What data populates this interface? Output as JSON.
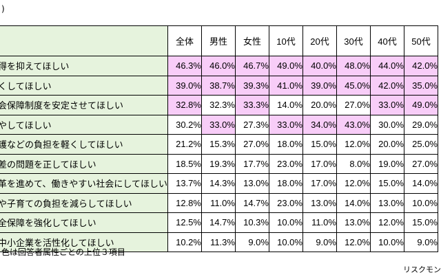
{
  "top_note": ")",
  "columns": [
    "全体",
    "男性",
    "女性",
    "10代",
    "20代",
    "30代",
    "40代",
    "50代"
  ],
  "rows": [
    {
      "label": "得を抑えてほしい",
      "values": [
        "46.3%",
        "46.0%",
        "46.7%",
        "49.0%",
        "40.0%",
        "48.0%",
        "44.0%",
        "42.0%"
      ],
      "highlight": [
        true,
        true,
        true,
        true,
        true,
        true,
        true,
        true
      ]
    },
    {
      "label": "くしてほしい",
      "values": [
        "39.0%",
        "38.7%",
        "39.3%",
        "41.0%",
        "39.0%",
        "45.0%",
        "42.0%",
        "35.0%"
      ],
      "highlight": [
        true,
        true,
        true,
        true,
        true,
        true,
        true,
        true
      ]
    },
    {
      "label": "会保障制度を安定させてほしい",
      "values": [
        "32.8%",
        "32.3%",
        "33.3%",
        "14.0%",
        "20.0%",
        "27.0%",
        "33.0%",
        "49.0%"
      ],
      "highlight": [
        true,
        false,
        true,
        false,
        false,
        false,
        true,
        true
      ]
    },
    {
      "label": "やしてほしい",
      "values": [
        "30.2%",
        "33.0%",
        "27.3%",
        "33.0%",
        "34.0%",
        "43.0%",
        "30.0%",
        "29.0%"
      ],
      "highlight": [
        false,
        true,
        false,
        true,
        true,
        true,
        false,
        false
      ]
    },
    {
      "label": "護などの負担を軽くしてほしい",
      "values": [
        "21.2%",
        "15.3%",
        "27.0%",
        "18.0%",
        "15.0%",
        "12.0%",
        "20.0%",
        "25.0%"
      ],
      "highlight": [
        false,
        false,
        false,
        false,
        false,
        false,
        false,
        false
      ]
    },
    {
      "label": "差の問題を正してほしい",
      "values": [
        "18.5%",
        "19.3%",
        "17.7%",
        "23.0%",
        "17.0%",
        "8.0%",
        "19.0%",
        "27.0%"
      ],
      "highlight": [
        false,
        false,
        false,
        false,
        false,
        false,
        false,
        false
      ]
    },
    {
      "label": "革を進めて、働きやすい社会にしてほしい",
      "values": [
        "13.7%",
        "14.3%",
        "13.0%",
        "18.0%",
        "17.0%",
        "12.0%",
        "15.0%",
        "14.0%"
      ],
      "highlight": [
        false,
        false,
        false,
        false,
        false,
        false,
        false,
        false
      ]
    },
    {
      "label": "や子育ての負担を減らしてほしい",
      "values": [
        "12.8%",
        "11.0%",
        "14.7%",
        "23.0%",
        "13.0%",
        "14.0%",
        "13.0%",
        "10.0%"
      ],
      "highlight": [
        false,
        false,
        false,
        false,
        false,
        false,
        false,
        false
      ]
    },
    {
      "label": "全保障を強化してほしい",
      "values": [
        "12.5%",
        "14.7%",
        "10.3%",
        "10.0%",
        "11.0%",
        "13.0%",
        "12.0%",
        "15.0%"
      ],
      "highlight": [
        false,
        false,
        false,
        false,
        false,
        false,
        false,
        false
      ]
    },
    {
      "label": "中小企業を活性化してほしい",
      "values": [
        "10.2%",
        "11.3%",
        "9.0%",
        "10.0%",
        "9.0%",
        "12.0%",
        "10.0%",
        "9.0%"
      ],
      "highlight": [
        false,
        false,
        false,
        false,
        false,
        false,
        false,
        false
      ]
    }
  ],
  "bottom_note": "色は回答者属性ごとの上位３項目",
  "credit": "リスクモン",
  "colors": {
    "highlight": "#f8cdf8",
    "label_bg": "#e6f3dd"
  }
}
